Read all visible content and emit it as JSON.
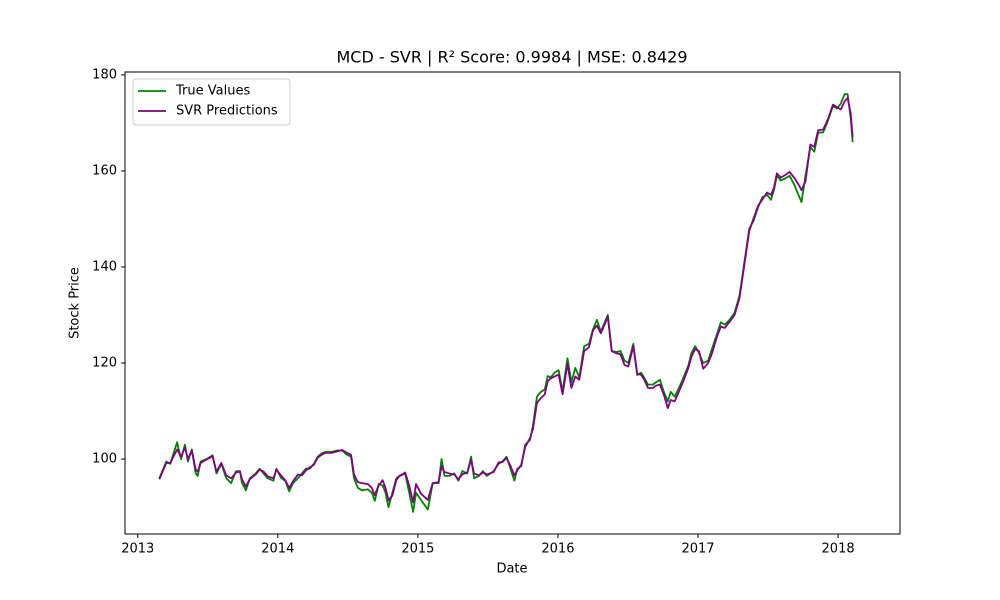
{
  "chart_data": {
    "type": "line",
    "title": "MCD - SVR | R² Score: 0.9984 | MSE: 0.8429",
    "x_label": "Date",
    "y_label": "Stock Price",
    "legend": "upper left",
    "grid": false,
    "xlim": [
      2012.909,
      2018.442
    ],
    "xticks": [
      2013,
      2014,
      2015,
      2016,
      2017,
      2018
    ],
    "ylim": [
      84.4,
      180.6
    ],
    "yticks": [
      100,
      120,
      140,
      160,
      180
    ],
    "x": [
      2013.154,
      2013.204,
      2013.232,
      2013.281,
      2013.309,
      2013.337,
      2013.358,
      2013.386,
      2013.414,
      2013.428,
      2013.449,
      2013.491,
      2013.534,
      2013.562,
      2013.597,
      2013.632,
      2013.667,
      2013.702,
      2013.73,
      2013.744,
      2013.772,
      2013.8,
      2013.842,
      2013.87,
      2013.899,
      2013.927,
      2013.969,
      2013.99,
      2014.025,
      2014.053,
      2014.081,
      2014.109,
      2014.144,
      2014.172,
      2014.2,
      2014.229,
      2014.257,
      2014.285,
      2014.313,
      2014.341,
      2014.383,
      2014.425,
      2014.46,
      2014.488,
      2014.523,
      2014.544,
      2014.572,
      2014.601,
      2014.643,
      2014.671,
      2014.692,
      2014.72,
      2014.748,
      2014.769,
      2014.79,
      2014.818,
      2014.846,
      2014.867,
      2014.909,
      2014.938,
      2014.966,
      2014.987,
      2015.022,
      2015.071,
      2015.106,
      2015.148,
      2015.169,
      2015.19,
      2015.225,
      2015.26,
      2015.289,
      2015.317,
      2015.352,
      2015.38,
      2015.401,
      2015.436,
      2015.464,
      2015.492,
      2015.541,
      2015.576,
      2015.604,
      2015.633,
      2015.661,
      2015.689,
      2015.71,
      2015.738,
      2015.766,
      2015.801,
      2015.822,
      2015.85,
      2015.878,
      2015.906,
      2015.927,
      2015.948,
      2015.976,
      2016.005,
      2016.033,
      2016.068,
      2016.096,
      2016.124,
      2016.152,
      2016.187,
      2016.222,
      2016.25,
      2016.278,
      2016.306,
      2016.327,
      2016.356,
      2016.384,
      2016.419,
      2016.447,
      2016.475,
      2016.503,
      2016.538,
      2016.566,
      2016.594,
      2016.615,
      2016.643,
      2016.678,
      2016.7,
      2016.728,
      2016.756,
      2016.784,
      2016.805,
      2016.833,
      2016.875,
      2016.903,
      2016.931,
      2016.952,
      2016.98,
      2017.008,
      2017.037,
      2017.072,
      2017.1,
      2017.135,
      2017.163,
      2017.191,
      2017.226,
      2017.261,
      2017.296,
      2017.331,
      2017.366,
      2017.395,
      2017.43,
      2017.458,
      2017.493,
      2017.521,
      2017.542,
      2017.563,
      2017.591,
      2017.626,
      2017.654,
      2017.689,
      2017.717,
      2017.739,
      2017.767,
      2017.802,
      2017.83,
      2017.858,
      2017.893,
      2017.928,
      2017.963,
      2017.991,
      2018.019,
      2018.047,
      2018.068,
      2018.09,
      2018.104
    ],
    "series": [
      {
        "name": "True Values",
        "color": "#008000",
        "values": [
          96,
          99.5,
          99,
          103.5,
          100,
          103,
          99.5,
          102,
          97,
          96.5,
          99.5,
          100,
          100.8,
          97,
          99,
          96,
          95,
          97.5,
          97.5,
          95,
          93.5,
          96,
          97,
          98,
          97,
          96,
          95.5,
          98,
          96,
          95.5,
          93.3,
          95,
          96,
          97,
          98,
          98,
          99,
          100.5,
          101.2,
          101.5,
          101.5,
          101.8,
          101.8,
          101,
          100.5,
          96,
          94,
          93.5,
          93.7,
          93,
          91.3,
          94.8,
          94.5,
          93,
          90,
          93,
          96,
          96.5,
          97,
          93,
          89,
          93,
          91.5,
          89.5,
          95,
          95,
          100,
          96.5,
          96.5,
          97,
          95.5,
          97.5,
          97,
          100.5,
          96,
          96.5,
          97.5,
          96.5,
          97.5,
          99,
          99.5,
          100.5,
          98,
          95.5,
          98,
          98.5,
          103,
          104,
          107,
          113,
          114,
          114.5,
          117.3,
          117,
          118,
          118.5,
          114,
          121,
          116,
          119,
          117,
          123.5,
          124,
          127,
          129,
          126.5,
          128,
          130,
          122.5,
          122.3,
          122.5,
          120.5,
          120,
          124,
          117.5,
          118,
          117,
          115.5,
          115.5,
          116,
          116.5,
          114,
          112,
          114,
          113,
          115.5,
          117.5,
          119.5,
          122,
          123.5,
          122,
          120,
          120.5,
          123,
          126,
          128.5,
          128,
          129,
          130.5,
          134,
          141,
          148,
          149.5,
          152.5,
          154.5,
          155,
          154,
          156,
          159,
          158,
          158.5,
          159,
          157,
          155,
          153.5,
          159,
          165,
          164,
          168,
          168,
          170.5,
          173.5,
          173,
          174,
          176,
          176,
          171,
          166
        ]
      },
      {
        "name": "SVR Predictions",
        "color": "#800080",
        "values": [
          95.8,
          99.2,
          99.2,
          102,
          100.5,
          102.4,
          100,
          101.8,
          97.8,
          97.4,
          99.2,
          99.9,
          100.6,
          97.4,
          99.2,
          96.6,
          96,
          97.2,
          97.4,
          95.8,
          94.3,
          95.8,
          96.8,
          97.8,
          97.4,
          96.4,
          96,
          97.8,
          96.5,
          95.6,
          94,
          95.4,
          96.8,
          96.6,
          97.6,
          98.3,
          98.8,
          100.3,
          100.9,
          101.3,
          101.3,
          101.6,
          101.9,
          101.4,
          100.9,
          96.8,
          95.2,
          95,
          94.8,
          94,
          92.5,
          94.5,
          95.6,
          94,
          91.4,
          92.4,
          95.6,
          96.4,
          97.2,
          94.5,
          91,
          94.8,
          92.8,
          91.5,
          95,
          95.2,
          98.5,
          97.3,
          97,
          96.8,
          95.8,
          96.8,
          97.2,
          99.8,
          97,
          96.6,
          97.2,
          96.8,
          97.3,
          99.3,
          99.4,
          100.2,
          98.6,
          96.6,
          97.7,
          98.8,
          102.5,
          104.4,
          106.3,
          111.7,
          112.7,
          113.5,
          116.2,
          116.8,
          117.2,
          117.6,
          113.5,
          119.8,
          114.8,
          117.2,
          116.5,
          122.5,
          123.3,
          126.8,
          127.8,
          126.2,
          127.6,
          129.6,
          122.5,
          122,
          121.8,
          119.6,
          119.3,
          123.5,
          117.8,
          117.5,
          116.6,
          114.8,
          114.8,
          115.3,
          115.5,
          113.4,
          110.6,
          112.3,
          112,
          114.8,
          116.8,
          119,
          121.2,
          123,
          122.4,
          118.8,
          120,
          122,
          125.5,
          127.6,
          127.3,
          128.6,
          130,
          133.5,
          140.5,
          147.5,
          150,
          152.8,
          154,
          155.5,
          155,
          156.5,
          159.5,
          158.6,
          159.2,
          159.8,
          158.5,
          157.2,
          156,
          157.8,
          165.5,
          165,
          168.5,
          168.6,
          170.8,
          173.8,
          173.3,
          172.8,
          174.5,
          175.2,
          172,
          167
        ]
      }
    ]
  }
}
